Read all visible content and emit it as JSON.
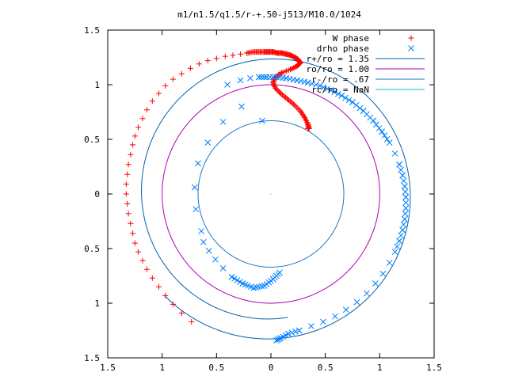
{
  "chart_data": {
    "type": "scatter",
    "title": "m1/n1.5/q1.5/r-+.50-j513/M10.0/1024",
    "xlim": [
      -1.5,
      1.5
    ],
    "ylim": [
      -1.5,
      1.5
    ],
    "x_ticks": [
      -1.5,
      -1,
      -0.5,
      0,
      0.5,
      1,
      1.5
    ],
    "y_ticks": [
      -1.5,
      -1,
      -0.5,
      0,
      0.5,
      1,
      1.5
    ],
    "x_tick_labels": [
      "1.5",
      "1",
      "0.5",
      "0",
      "0.5",
      "1",
      "1.5"
    ],
    "y_tick_labels": [
      "1.5",
      "1",
      "0.5",
      "0",
      "0.5",
      "1",
      "1.5"
    ],
    "grid": false,
    "legend_position": "top-right",
    "series": [
      {
        "name": "W phase",
        "kind": "points",
        "marker": "plus",
        "color": "#ff0000",
        "points": [
          [
            -0.73,
            -1.17
          ],
          [
            -0.82,
            -1.09
          ],
          [
            -0.9,
            -1.01
          ],
          [
            -0.97,
            -0.93
          ],
          [
            -1.03,
            -0.85
          ],
          [
            -1.09,
            -0.77
          ],
          [
            -1.14,
            -0.69
          ],
          [
            -1.18,
            -0.61
          ],
          [
            -1.22,
            -0.53
          ],
          [
            -1.25,
            -0.45
          ],
          [
            -1.27,
            -0.36
          ],
          [
            -1.29,
            -0.27
          ],
          [
            -1.31,
            -0.18
          ],
          [
            -1.32,
            -0.09
          ],
          [
            -1.33,
            0.0
          ],
          [
            -1.33,
            0.09
          ],
          [
            -1.32,
            0.18
          ],
          [
            -1.31,
            0.27
          ],
          [
            -1.29,
            0.36
          ],
          [
            -1.27,
            0.45
          ],
          [
            -1.25,
            0.53
          ],
          [
            -1.22,
            0.61
          ],
          [
            -1.18,
            0.69
          ],
          [
            -1.14,
            0.77
          ],
          [
            -1.09,
            0.85
          ],
          [
            -1.03,
            0.92
          ],
          [
            -0.97,
            0.99
          ],
          [
            -0.9,
            1.05
          ],
          [
            -0.82,
            1.1
          ],
          [
            -0.74,
            1.15
          ],
          [
            -0.66,
            1.19
          ],
          [
            -0.58,
            1.22
          ],
          [
            -0.5,
            1.24
          ],
          [
            -0.42,
            1.26
          ],
          [
            -0.35,
            1.27
          ],
          [
            -0.28,
            1.28
          ],
          [
            -0.22,
            1.29
          ],
          [
            -0.16,
            1.3
          ],
          [
            -0.11,
            1.3
          ],
          [
            -0.06,
            1.3
          ],
          [
            -0.02,
            1.3
          ],
          [
            0.02,
            1.3
          ],
          [
            0.06,
            1.29
          ],
          [
            0.1,
            1.29
          ],
          [
            0.14,
            1.28
          ],
          [
            0.18,
            1.27
          ],
          [
            0.22,
            1.25
          ],
          [
            0.25,
            1.23
          ],
          [
            0.27,
            1.2
          ],
          [
            0.24,
            1.17
          ],
          [
            0.18,
            1.14
          ],
          [
            0.1,
            1.11
          ],
          [
            0.04,
            1.07
          ],
          [
            0.02,
            1.02
          ],
          [
            0.04,
            0.97
          ],
          [
            0.09,
            0.92
          ],
          [
            0.15,
            0.87
          ],
          [
            0.21,
            0.82
          ],
          [
            0.27,
            0.76
          ],
          [
            0.31,
            0.7
          ],
          [
            0.34,
            0.64
          ],
          [
            0.35,
            0.6
          ],
          [
            0.34,
            0.6
          ]
        ]
      },
      {
        "name": "drho phase",
        "kind": "points",
        "marker": "cross",
        "color": "#0080ff",
        "points": [
          [
            -0.08,
            0.67
          ],
          [
            -0.27,
            0.8
          ],
          [
            -0.44,
            0.66
          ],
          [
            -0.58,
            0.47
          ],
          [
            -0.67,
            0.28
          ],
          [
            -0.7,
            0.06
          ],
          [
            -0.69,
            -0.14
          ],
          [
            -0.64,
            -0.34
          ],
          [
            -0.62,
            -0.44
          ],
          [
            -0.57,
            -0.52
          ],
          [
            -0.51,
            -0.6
          ],
          [
            -0.44,
            -0.68
          ],
          [
            -0.36,
            -0.76
          ],
          [
            -0.26,
            -0.82
          ],
          [
            -0.16,
            -0.86
          ],
          [
            -0.06,
            -0.84
          ],
          [
            0.02,
            -0.78
          ],
          [
            0.08,
            -0.72
          ],
          [
            -0.4,
            1.0
          ],
          [
            -0.28,
            1.04
          ],
          [
            -0.19,
            1.06
          ],
          [
            -0.11,
            1.07
          ],
          [
            -0.04,
            1.07
          ],
          [
            0.05,
            1.07
          ],
          [
            0.14,
            1.06
          ],
          [
            0.24,
            1.04
          ],
          [
            0.34,
            1.02
          ],
          [
            0.45,
            0.99
          ],
          [
            0.55,
            0.95
          ],
          [
            0.65,
            0.9
          ],
          [
            0.75,
            0.84
          ],
          [
            0.85,
            0.76
          ],
          [
            0.94,
            0.67
          ],
          [
            1.02,
            0.57
          ],
          [
            1.09,
            0.47
          ],
          [
            1.14,
            0.37
          ],
          [
            1.18,
            0.27
          ],
          [
            1.21,
            0.17
          ],
          [
            1.23,
            0.07
          ],
          [
            1.24,
            -0.03
          ],
          [
            1.24,
            -0.13
          ],
          [
            1.23,
            -0.23
          ],
          [
            1.21,
            -0.33
          ],
          [
            1.18,
            -0.43
          ],
          [
            1.14,
            -0.53
          ],
          [
            1.09,
            -0.63
          ],
          [
            1.03,
            -0.73
          ],
          [
            0.96,
            -0.82
          ],
          [
            0.88,
            -0.91
          ],
          [
            0.79,
            -0.99
          ],
          [
            0.69,
            -1.06
          ],
          [
            0.59,
            -1.12
          ],
          [
            0.48,
            -1.17
          ],
          [
            0.37,
            -1.21
          ],
          [
            0.26,
            -1.25
          ],
          [
            0.16,
            -1.28
          ],
          [
            0.09,
            -1.32
          ],
          [
            0.05,
            -1.34
          ]
        ]
      },
      {
        "name": "r+/ro = 1.35",
        "kind": "spiral",
        "color": "#0060ad",
        "r0": 1.35,
        "rate": 0.029,
        "theta_from": 3.9,
        "theta_to": 4.65
      },
      {
        "name": "ro/ro = 1.00",
        "kind": "circle",
        "color": "#b000b0",
        "r0": 1.0
      },
      {
        "name": "r-/ro = .67",
        "kind": "circle",
        "color": "#1f78c8",
        "r0": 0.67
      },
      {
        "name": "rc/ro = NaN",
        "kind": "none",
        "color": "#00c8d8"
      }
    ]
  }
}
